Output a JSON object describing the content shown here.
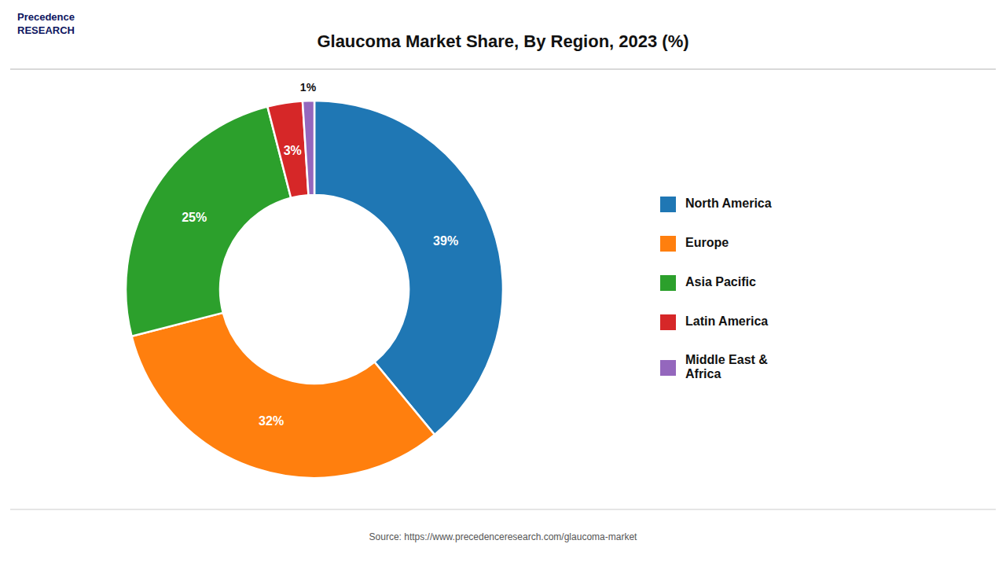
{
  "chart_data": {
    "type": "donut",
    "title": "Glaucoma Market Share, By Region, 2023 (%)",
    "categories": [
      "North America",
      "Europe",
      "Asia Pacific",
      "Latin America",
      "Middle East &\nAfrica"
    ],
    "values": [
      39,
      32,
      25,
      3,
      1
    ],
    "value_labels": [
      "39%",
      "32%",
      "25%",
      "3%",
      "1%"
    ],
    "data_labels": true,
    "legend": "right",
    "annotations": [
      "Source: https://www.precedenceresearch.com/glaucoma-market",
      "Precedence\nRESEARCH"
    ]
  }
}
